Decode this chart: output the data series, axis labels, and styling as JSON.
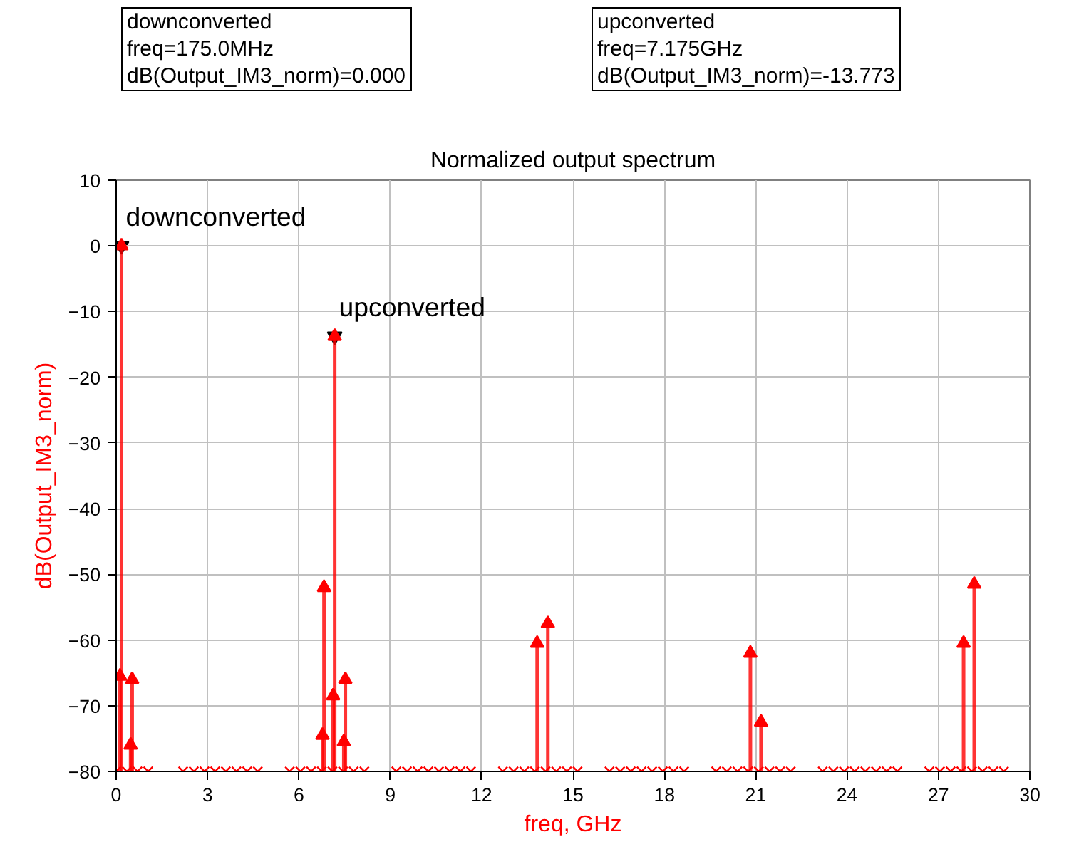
{
  "chart_data": {
    "type": "lollipop",
    "title": "Normalized output spectrum",
    "xlabel": "freq, GHz",
    "ylabel": "dB(Output_IM3_norm)",
    "xlim": [
      0,
      30
    ],
    "ylim": [
      -80,
      10
    ],
    "xticks": [
      0,
      3,
      6,
      9,
      12,
      15,
      18,
      21,
      24,
      27,
      30
    ],
    "yticks": [
      -80,
      -70,
      -60,
      -50,
      -40,
      -30,
      -20,
      -10,
      0,
      10
    ],
    "grid": true,
    "line_style": "solid",
    "series": [
      {
        "color": "#ff0000",
        "marker": "triangle",
        "x": [
          0.125,
          0.175,
          0.475,
          0.525,
          6.775,
          6.825,
          7.125,
          7.175,
          7.475,
          7.525,
          13.825,
          14.175,
          20.825,
          21.175,
          27.825,
          28.175
        ],
        "values": [
          -65.5,
          0,
          -76,
          -66,
          -74.5,
          -52,
          -68.5,
          -13.773,
          -75.5,
          -66,
          -60.5,
          -57.5,
          -62,
          -72.5,
          -60.5,
          -51.5
        ]
      },
      {
        "type": "scatter",
        "color": "#ff0000",
        "marker": "cross",
        "x": [
          0,
          0.35,
          0.7,
          1.05,
          2.2,
          2.55,
          2.9,
          3.25,
          3.6,
          3.95,
          4.3,
          4.65,
          5.7,
          6.05,
          6.4,
          6.75,
          7.1,
          7.45,
          7.8,
          8.15,
          9.2,
          9.55,
          9.9,
          10.25,
          10.6,
          10.95,
          11.3,
          11.65,
          12.7,
          13.05,
          13.4,
          13.75,
          14.1,
          14.45,
          14.8,
          15.15,
          16.2,
          16.55,
          16.9,
          17.25,
          17.6,
          17.95,
          18.3,
          18.65,
          19.7,
          20.05,
          20.4,
          20.75,
          21.1,
          21.45,
          21.8,
          22.15,
          23.2,
          23.55,
          23.9,
          24.25,
          24.6,
          24.95,
          25.3,
          25.65,
          26.7,
          27.05,
          27.4,
          27.75,
          28.1,
          28.45,
          28.8,
          29.15
        ],
        "values": [
          -80,
          -80,
          -80,
          -80,
          -80,
          -80,
          -80,
          -80,
          -80,
          -80,
          -80,
          -80,
          -80,
          -80,
          -80,
          -80,
          -80,
          -80,
          -80,
          -80,
          -80,
          -80,
          -80,
          -80,
          -80,
          -80,
          -80,
          -80,
          -80,
          -80,
          -80,
          -80,
          -80,
          -80,
          -80,
          -80,
          -80,
          -80,
          -80,
          -80,
          -80,
          -80,
          -80,
          -80,
          -80,
          -80,
          -80,
          -80,
          -80,
          -80,
          -80,
          -80,
          -80,
          -80,
          -80,
          -80,
          -80,
          -80,
          -80,
          -80,
          -80,
          -80,
          -80,
          -80,
          -80,
          -80,
          -80,
          -80
        ]
      }
    ],
    "annotations": [
      "downconverted\nfreq=175.0MHz\ndB(Output_IM3_norm)=0.000",
      "upconverted\nfreq=7.175GHz\ndB(Output_IM3_norm)=-13.773",
      {
        "text": "downconverted",
        "x": 0.175,
        "y": 0
      },
      {
        "text": "upconverted",
        "x": 7.175,
        "y": -13.773
      }
    ]
  }
}
